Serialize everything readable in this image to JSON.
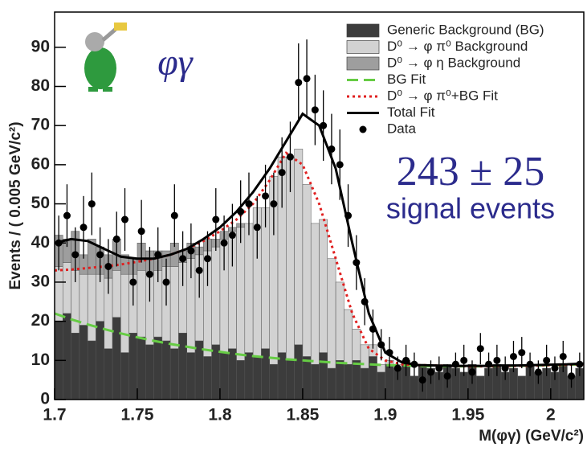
{
  "chart_data": {
    "type": "histogram",
    "ylabel": "Events / ( 0.005 GeV/c²)",
    "xlabel": "M(φγ) (GeV/c²)",
    "xlim": [
      1.7,
      2.02
    ],
    "ylim": [
      0,
      99
    ],
    "xticks": [
      1.7,
      1.75,
      1.8,
      1.85,
      1.9,
      1.95,
      2
    ],
    "yticks": [
      0,
      10,
      20,
      30,
      40,
      50,
      60,
      70,
      80,
      90
    ],
    "annotations": [
      "φγ",
      "243 ± 25",
      "signal events"
    ],
    "bins": [
      1.7,
      1.705,
      1.71,
      1.715,
      1.72,
      1.725,
      1.73,
      1.735,
      1.74,
      1.745,
      1.75,
      1.755,
      1.76,
      1.765,
      1.77,
      1.775,
      1.78,
      1.785,
      1.79,
      1.795,
      1.8,
      1.805,
      1.81,
      1.815,
      1.82,
      1.825,
      1.83,
      1.835,
      1.84,
      1.845,
      1.85,
      1.855,
      1.86,
      1.865,
      1.87,
      1.875,
      1.88,
      1.885,
      1.89,
      1.895,
      1.9,
      1.905,
      1.91,
      1.915,
      1.92,
      1.925,
      1.93,
      1.935,
      1.94,
      1.945,
      1.95,
      1.955,
      1.96,
      1.965,
      1.97,
      1.975,
      1.98,
      1.985,
      1.99,
      1.995,
      2,
      2.005,
      2.01,
      2.015,
      2.02
    ],
    "series": [
      {
        "name": "Generic Background (BG)",
        "color": "#3c3c3c",
        "values": [
          20,
          22,
          17,
          19,
          15,
          20,
          13,
          21,
          12,
          17,
          16,
          14,
          16,
          15,
          13,
          17,
          12,
          15,
          11,
          14,
          12,
          13,
          10,
          12,
          11,
          13,
          9,
          12,
          10,
          14,
          11,
          9,
          12,
          8,
          10,
          9,
          10,
          8,
          11,
          7,
          9,
          8,
          10,
          6,
          9,
          8,
          7,
          9,
          8,
          7,
          9,
          6,
          8,
          9,
          7,
          8,
          6,
          9,
          7,
          8,
          7,
          9,
          6,
          8
        ]
      },
      {
        "name": "D⁰ → φ π⁰ Background",
        "color": "#d2d2d2",
        "values": [
          14,
          13,
          16,
          13,
          17,
          12,
          18,
          12,
          20,
          15,
          17,
          18,
          17,
          19,
          21,
          18,
          24,
          22,
          27,
          25,
          29,
          30,
          34,
          33,
          38,
          36,
          48,
          50,
          52,
          50,
          44,
          36,
          34,
          28,
          20,
          14,
          8,
          6,
          3,
          2,
          1,
          1,
          0,
          0,
          0,
          0,
          0,
          0,
          0,
          0,
          0,
          0,
          0,
          0,
          0,
          0,
          0,
          0,
          0,
          0,
          0,
          0,
          0,
          0
        ]
      },
      {
        "name": "D⁰ → φ η Background",
        "color": "#9e9e9e",
        "values": [
          8,
          6,
          10,
          5,
          9,
          7,
          6,
          8,
          5,
          4,
          7,
          6,
          5,
          4,
          6,
          3,
          4,
          2,
          3,
          2,
          2,
          1,
          1,
          0,
          0,
          0,
          0,
          0,
          0,
          0,
          0,
          0,
          0,
          0,
          0,
          0,
          0,
          0,
          0,
          0,
          0,
          0,
          0,
          0,
          0,
          0,
          0,
          0,
          0,
          0,
          0,
          0,
          0,
          0,
          0,
          0,
          0,
          0,
          0,
          0,
          0,
          0,
          0,
          0
        ]
      }
    ],
    "fit_x": [
      1.7,
      1.71,
      1.72,
      1.73,
      1.74,
      1.75,
      1.76,
      1.77,
      1.78,
      1.79,
      1.8,
      1.81,
      1.82,
      1.83,
      1.84,
      1.85,
      1.86,
      1.87,
      1.88,
      1.89,
      1.9,
      1.91,
      1.92,
      1.93,
      1.94,
      1.95,
      1.96,
      1.97,
      1.98,
      1.99,
      2,
      2.01,
      2.02
    ],
    "fits": [
      {
        "name": "BG Fit",
        "color": "#66cc44",
        "style": "dashed",
        "values": [
          22,
          20.5,
          19.2,
          18,
          16.9,
          15.9,
          15,
          14.2,
          13.5,
          12.8,
          12.2,
          11.6,
          11.1,
          10.7,
          10.3,
          10,
          9.7,
          9.4,
          9.2,
          9,
          8.8,
          8.7,
          8.6,
          8.5,
          8.5,
          8.5,
          8.5,
          8.6,
          8.6,
          8.7,
          8.8,
          8.9,
          9
        ]
      },
      {
        "name": "D⁰ → φ π⁰+BG Fit",
        "color": "#e02020",
        "style": "dotted",
        "values": [
          33,
          33.2,
          33.6,
          34,
          34.5,
          35.2,
          36,
          37,
          38.5,
          40.5,
          43,
          46,
          50,
          56,
          63,
          60,
          50,
          36,
          22,
          13,
          10,
          9,
          8.8,
          8.7,
          8.6,
          8.5,
          8.5,
          8.6,
          8.6,
          8.7,
          8.8,
          8.9,
          9
        ]
      },
      {
        "name": "Total Fit",
        "color": "#000000",
        "style": "solid",
        "values": [
          40,
          41,
          40.5,
          38.5,
          36.5,
          36,
          36,
          37,
          38.5,
          41,
          44,
          48,
          53,
          59,
          66,
          73,
          70,
          59,
          40,
          22,
          12,
          9.5,
          8.8,
          8.7,
          8.6,
          8.6,
          8.6,
          8.7,
          8.7,
          8.8,
          8.9,
          9,
          9.2
        ]
      }
    ],
    "data": {
      "name": "Data",
      "color": "#000000",
      "values": [
        40,
        47,
        37,
        44,
        50,
        37,
        34,
        41,
        46,
        30,
        43,
        32,
        37,
        30,
        47,
        36,
        38,
        33,
        36,
        46,
        40,
        42,
        48,
        50,
        44,
        52,
        50,
        58,
        62,
        81,
        82,
        74,
        70,
        64,
        60,
        47,
        35,
        25,
        18,
        14,
        12,
        8,
        10,
        9,
        5,
        7,
        8,
        6,
        9,
        10,
        7,
        13,
        9,
        10,
        8,
        11,
        12,
        9,
        7,
        10,
        8,
        11,
        6,
        9
      ],
      "errors": [
        7,
        8,
        7,
        8,
        8,
        7,
        7,
        7,
        8,
        6,
        8,
        7,
        7,
        6,
        8,
        7,
        7,
        7,
        7,
        8,
        7,
        8,
        8,
        8,
        8,
        8,
        8,
        9,
        9,
        10,
        10,
        9,
        9,
        9,
        9,
        8,
        7,
        6,
        5,
        4,
        4,
        3,
        4,
        3,
        3,
        3,
        3,
        3,
        3,
        4,
        3,
        4,
        3,
        4,
        3,
        4,
        4,
        3,
        3,
        4,
        3,
        4,
        3,
        3
      ]
    }
  }
}
